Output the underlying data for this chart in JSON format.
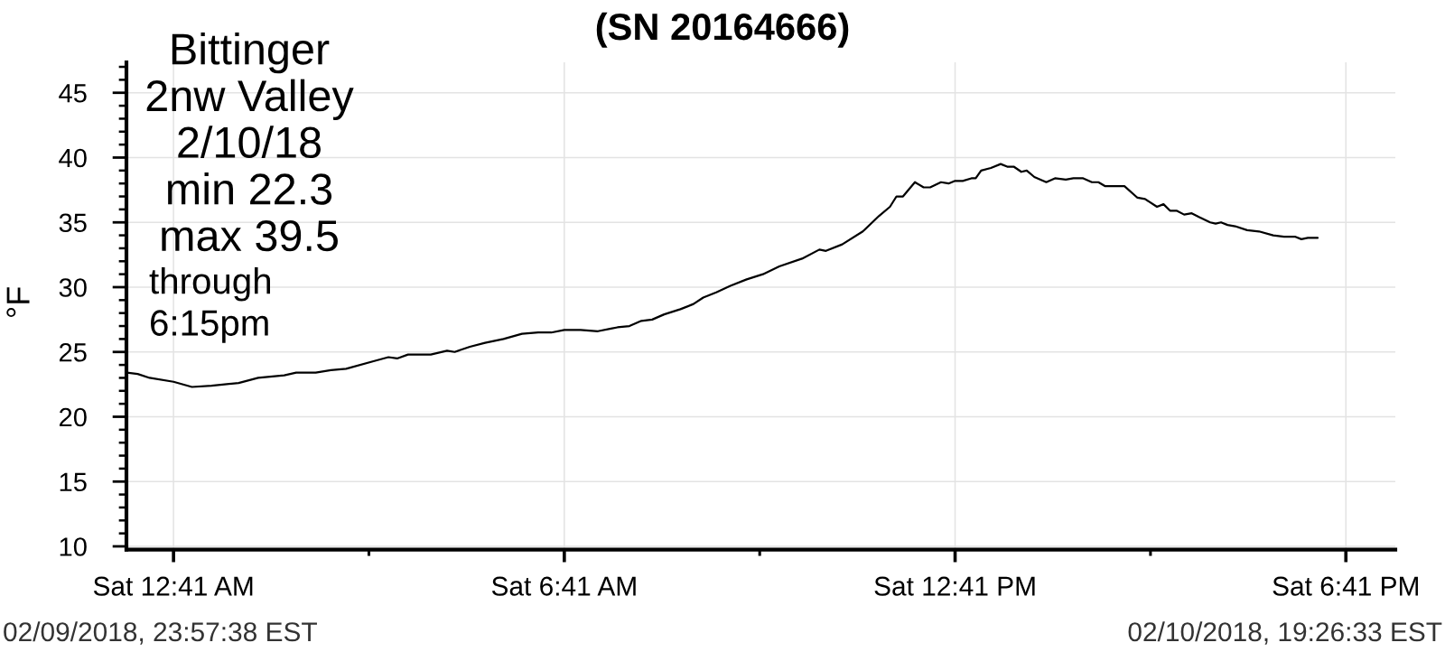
{
  "chart_data": {
    "type": "line",
    "title": "(SN 20164666)",
    "ylabel": "°F",
    "annotations": [
      "Bittinger\n2nw Valley\n2/10/18\nmin 22.3\nmax 39.5",
      "through\n6:15pm",
      "02/09/2018, 23:57:38 EST",
      "02/10/2018, 19:26:33 EST"
    ],
    "x": [
      "2018-02-09T23:58",
      "2018-02-10T00:08",
      "2018-02-10T00:19",
      "2018-02-10T00:41",
      "2018-02-10T00:58",
      "2018-02-10T01:16",
      "2018-02-10T01:41",
      "2018-02-10T01:59",
      "2018-02-10T02:23",
      "2018-02-10T02:34",
      "2018-02-10T02:52",
      "2018-02-10T03:06",
      "2018-02-10T03:20",
      "2018-02-10T03:46",
      "2018-02-10T03:59",
      "2018-02-10T04:07",
      "2018-02-10T04:17",
      "2018-02-10T04:38",
      "2018-02-10T04:53",
      "2018-02-10T05:00",
      "2018-02-10T05:14",
      "2018-02-10T05:28",
      "2018-02-10T05:45",
      "2018-02-10T06:02",
      "2018-02-10T06:17",
      "2018-02-10T06:29",
      "2018-02-10T06:41",
      "2018-02-10T06:56",
      "2018-02-10T07:12",
      "2018-02-10T07:24",
      "2018-02-10T07:30",
      "2018-02-10T07:41",
      "2018-02-10T07:52",
      "2018-02-10T08:02",
      "2018-02-10T08:13",
      "2018-02-10T08:28",
      "2018-02-10T08:40",
      "2018-02-10T08:49",
      "2018-02-10T09:01",
      "2018-02-10T09:14",
      "2018-02-10T09:29",
      "2018-02-10T09:44",
      "2018-02-10T09:59",
      "2018-02-10T10:20",
      "2018-02-10T10:36",
      "2018-02-10T10:42",
      "2018-02-10T10:57",
      "2018-02-10T11:16",
      "2018-02-10T11:31",
      "2018-02-10T11:41",
      "2018-02-10T11:47",
      "2018-02-10T11:53",
      "2018-02-10T12:04",
      "2018-02-10T12:12",
      "2018-02-10T12:18",
      "2018-02-10T12:28",
      "2018-02-10T12:35",
      "2018-02-10T12:41",
      "2018-02-10T12:48",
      "2018-02-10T12:56",
      "2018-02-10T13:00",
      "2018-02-10T13:05",
      "2018-02-10T13:14",
      "2018-02-10T13:23",
      "2018-02-10T13:29",
      "2018-02-10T13:35",
      "2018-02-10T13:42",
      "2018-02-10T13:47",
      "2018-02-10T13:54",
      "2018-02-10T14:05",
      "2018-02-10T14:13",
      "2018-02-10T14:23",
      "2018-02-10T14:30",
      "2018-02-10T14:39",
      "2018-02-10T14:47",
      "2018-02-10T14:53",
      "2018-02-10T14:59",
      "2018-02-10T15:08",
      "2018-02-10T15:17",
      "2018-02-10T15:29",
      "2018-02-10T15:36",
      "2018-02-10T15:47",
      "2018-02-10T15:53",
      "2018-02-10T15:59",
      "2018-02-10T16:05",
      "2018-02-10T16:12",
      "2018-02-10T16:19",
      "2018-02-10T16:26",
      "2018-02-10T16:36",
      "2018-02-10T16:41",
      "2018-02-10T16:46",
      "2018-02-10T16:52",
      "2018-02-10T16:59",
      "2018-02-10T17:10",
      "2018-02-10T17:21",
      "2018-02-10T17:34",
      "2018-02-10T17:44",
      "2018-02-10T17:54",
      "2018-02-10T18:00",
      "2018-02-10T18:06",
      "2018-02-10T18:15"
    ],
    "series": [
      {
        "color": "#000000",
        "values": [
          23.4,
          23.3,
          23.0,
          22.7,
          22.3,
          22.4,
          22.6,
          23.0,
          23.2,
          23.4,
          23.4,
          23.6,
          23.7,
          24.3,
          24.6,
          24.5,
          24.8,
          24.8,
          25.1,
          25.0,
          25.4,
          25.7,
          26.0,
          26.4,
          26.5,
          26.5,
          26.7,
          26.7,
          26.6,
          26.8,
          26.9,
          27.0,
          27.4,
          27.5,
          27.9,
          28.3,
          28.7,
          29.2,
          29.6,
          30.1,
          30.6,
          31.0,
          31.6,
          32.2,
          32.9,
          32.8,
          33.3,
          34.3,
          35.5,
          36.2,
          37.0,
          37.0,
          38.1,
          37.7,
          37.7,
          38.1,
          38.0,
          38.2,
          38.2,
          38.4,
          38.4,
          39.0,
          39.2,
          39.5,
          39.3,
          39.3,
          38.9,
          39.0,
          38.5,
          38.1,
          38.4,
          38.3,
          38.4,
          38.4,
          38.1,
          38.1,
          37.8,
          37.8,
          37.8,
          36.9,
          36.8,
          36.2,
          36.4,
          35.9,
          35.9,
          35.6,
          35.7,
          35.4,
          35.0,
          34.9,
          35.0,
          34.8,
          34.7,
          34.4,
          34.3,
          34.0,
          33.9,
          33.9,
          33.7,
          33.8,
          33.8
        ]
      }
    ],
    "xlim": [
      "2018-02-09T23:57:38",
      "2018-02-10T19:26:33"
    ],
    "xticks": [
      {
        "value": "2018-02-10T00:41",
        "label": "Sat 12:41 AM"
      },
      {
        "value": "2018-02-10T03:41",
        "label": null
      },
      {
        "value": "2018-02-10T06:41",
        "label": "Sat 6:41 AM"
      },
      {
        "value": "2018-02-10T09:41",
        "label": null
      },
      {
        "value": "2018-02-10T12:41",
        "label": "Sat 12:41 PM"
      },
      {
        "value": "2018-02-10T15:41",
        "label": null
      },
      {
        "value": "2018-02-10T18:41",
        "label": "Sat 6:41 PM"
      }
    ],
    "ylim": [
      9.75,
      47.35
    ],
    "yticks": [
      10,
      {
        "value": 11,
        "label": null
      },
      {
        "value": 12,
        "label": null
      },
      {
        "value": 13,
        "label": null
      },
      {
        "value": 14,
        "label": null
      },
      15,
      {
        "value": 16,
        "label": null
      },
      {
        "value": 17,
        "label": null
      },
      {
        "value": 18,
        "label": null
      },
      {
        "value": 19,
        "label": null
      },
      20,
      {
        "value": 21,
        "label": null
      },
      {
        "value": 22,
        "label": null
      },
      {
        "value": 23,
        "label": null
      },
      {
        "value": 24,
        "label": null
      },
      25,
      {
        "value": 26,
        "label": null
      },
      {
        "value": 27,
        "label": null
      },
      {
        "value": 28,
        "label": null
      },
      {
        "value": 29,
        "label": null
      },
      30,
      {
        "value": 31,
        "label": null
      },
      {
        "value": 32,
        "label": null
      },
      {
        "value": 33,
        "label": null
      },
      {
        "value": 34,
        "label": null
      },
      35,
      {
        "value": 36,
        "label": null
      },
      {
        "value": 37,
        "label": null
      },
      {
        "value": 38,
        "label": null
      },
      {
        "value": 39,
        "label": null
      },
      40,
      {
        "value": 41,
        "label": null
      },
      {
        "value": 42,
        "label": null
      },
      {
        "value": 43,
        "label": null
      },
      {
        "value": 44,
        "label": null
      },
      45,
      {
        "value": 46,
        "label": null
      },
      {
        "value": 47,
        "label": null
      }
    ],
    "grid": true
  }
}
